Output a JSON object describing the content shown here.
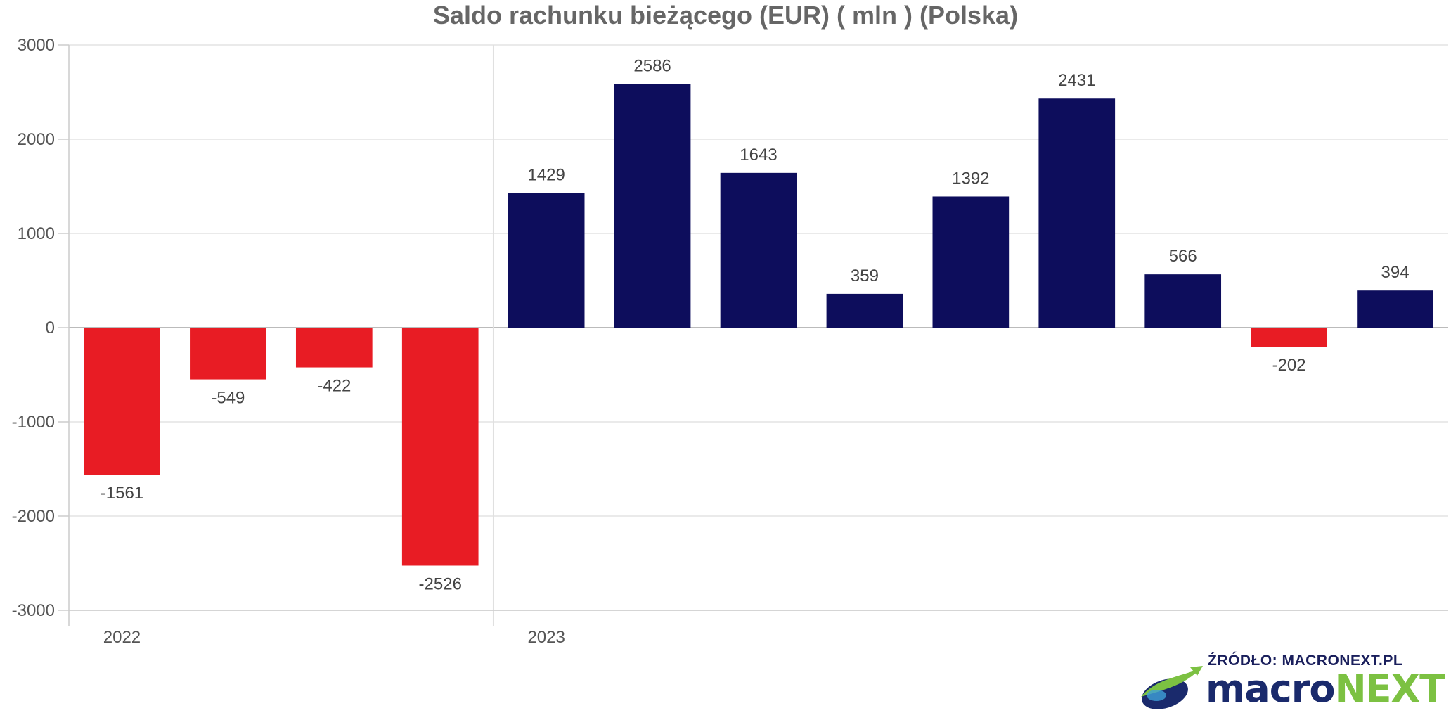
{
  "chart_data": {
    "type": "bar",
    "title": "Saldo rachunku bieżącego (EUR) ( mln ) (Polska)",
    "xlabel": "",
    "ylabel": "",
    "ylim": [
      -3000,
      3000
    ],
    "yticks": [
      "3000",
      "2000",
      "1000",
      "0",
      "-1000",
      "-2000",
      "-3000"
    ],
    "year_labels": [
      "2022",
      "2023"
    ],
    "values": [
      -1561,
      -549,
      -422,
      -2526,
      1429,
      2586,
      1643,
      359,
      1392,
      2431,
      566,
      -202,
      394
    ],
    "grid": true,
    "colors": {
      "positive": "#0d0d5c",
      "negative": "#e81c24"
    }
  },
  "source": {
    "label": "ŹRÓDŁO: MACRONEXT.PL",
    "brand_part1": "macro",
    "brand_part2": "NEXT"
  }
}
